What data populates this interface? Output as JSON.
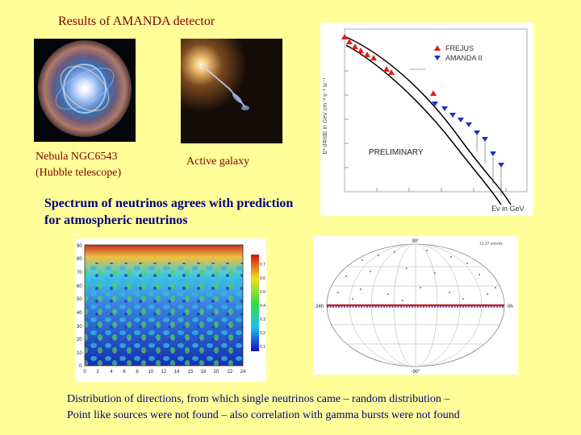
{
  "title": "Results of AMANDA detector",
  "nebula_caption": [
    "Nebula NGC6543",
    "(Hubble telescope)"
  ],
  "galaxy_caption": "Active galaxy",
  "spectrum_heading": [
    "Spectrum of neutrinos agrees with prediction",
    "for atmospheric neutrinos"
  ],
  "bottom_text": [
    "Distribution of directions, from which single neutrinos came – random distribution –",
    "Point like sources were not found – also correlation with gamma bursts were not found"
  ],
  "spectrum_plot": {
    "legend": [
      "FREJUS",
      "AMANDA II"
    ],
    "preliminary": "PRELIMINARY",
    "xlabel": "Eν in GeV",
    "ylabel": "E² dΦ/dE in GeV cm⁻² s⁻¹ sr⁻¹",
    "colors": {
      "frejus": "#e0201a",
      "amanda": "#2030c0"
    }
  },
  "heatmap": {
    "y_ticks": [
      "90",
      "80",
      "70",
      "60",
      "50",
      "40",
      "30",
      "20",
      "10",
      "0"
    ],
    "x_ticks": [
      "0",
      "2",
      "4",
      "6",
      "8",
      "10",
      "12",
      "14",
      "15",
      "18",
      "20",
      "22",
      "24"
    ],
    "scale_ticks": [
      "0.7",
      "0.6",
      "0.5",
      "0.4",
      "0.3",
      "0.2",
      "0.1"
    ]
  },
  "skymap": {
    "top_label": "90°",
    "bottom_label": "-90°",
    "left_label": "24h",
    "right_label": "0h",
    "corner_label": "12.37 events"
  }
}
